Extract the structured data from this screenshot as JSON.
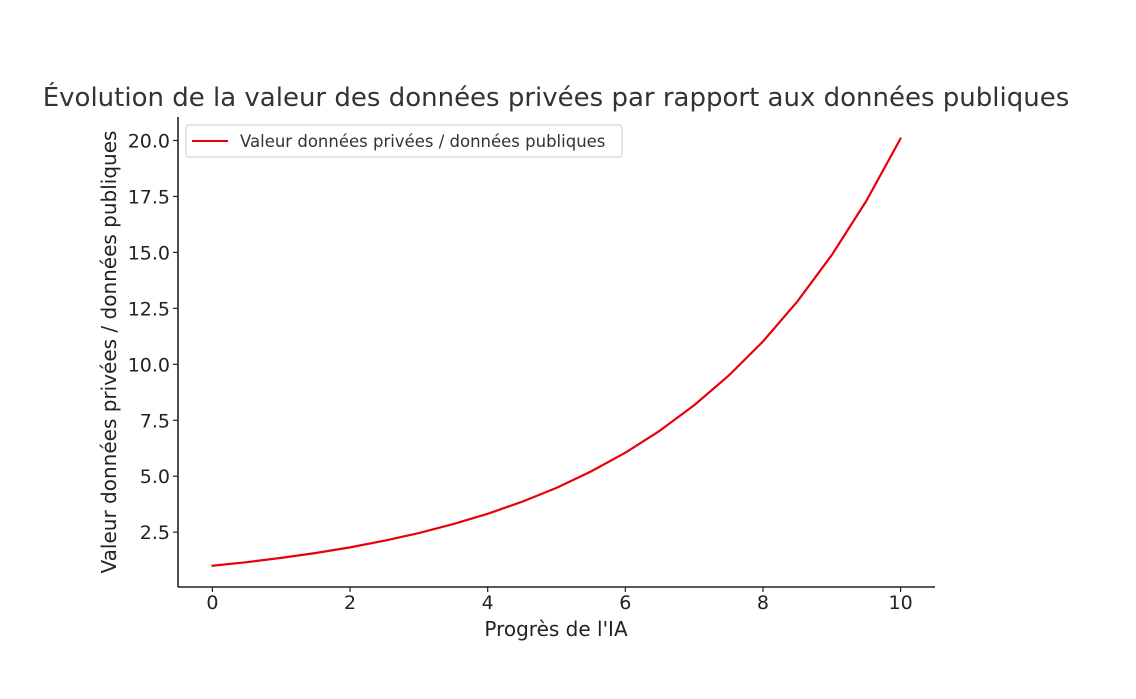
{
  "chart_data": {
    "type": "line",
    "title": "Évolution de la valeur des données privées par rapport aux données publiques",
    "xlabel": "Progrès de l'IA",
    "ylabel": "Valeur données privées / données publiques",
    "xlim": [
      -0.5,
      10.5
    ],
    "ylim": [
      0.05,
      21.05
    ],
    "x_ticks": [
      0,
      2,
      4,
      6,
      8,
      10
    ],
    "x_tick_labels": [
      "0",
      "2",
      "4",
      "6",
      "8",
      "10"
    ],
    "y_ticks": [
      2.5,
      5.0,
      7.5,
      10.0,
      12.5,
      15.0,
      17.5,
      20.0
    ],
    "y_tick_labels": [
      "2.5",
      "5.0",
      "7.5",
      "10.0",
      "12.5",
      "15.0",
      "17.5",
      "20.0"
    ],
    "grid": false,
    "legend_position": "top-left",
    "series": [
      {
        "name": "Valeur données privées / données publiques",
        "color": "#e8000b",
        "x": [
          0,
          0.5,
          1,
          1.5,
          2,
          2.5,
          3,
          3.5,
          4,
          4.5,
          5,
          5.5,
          6,
          6.5,
          7,
          7.5,
          8,
          8.5,
          9,
          9.5,
          10
        ],
        "y": [
          1.0,
          1.16,
          1.35,
          1.57,
          1.82,
          2.12,
          2.46,
          2.86,
          3.32,
          3.86,
          4.48,
          5.21,
          6.05,
          7.03,
          8.17,
          9.49,
          11.02,
          12.81,
          14.88,
          17.29,
          20.09
        ]
      }
    ]
  }
}
